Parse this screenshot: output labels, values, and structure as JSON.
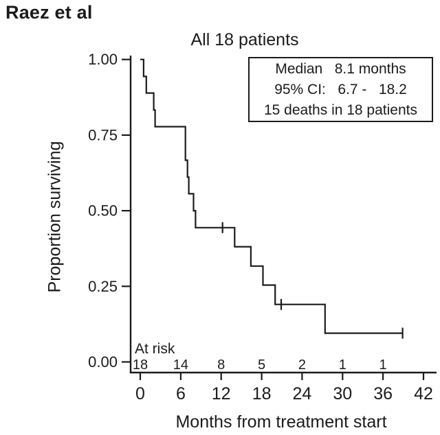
{
  "page": {
    "attribution": "Raez et al"
  },
  "stats_box": {
    "lines": [
      "Median   8.1 months",
      "95% CI:   6.7 -   18.2",
      "15 deaths in 18 patients"
    ]
  },
  "chart_data": {
    "type": "line",
    "chart_kind": "kaplan_meier_step_curve",
    "title": "All 18 patients",
    "xlabel": "Months from treatment start",
    "ylabel": "Proportion surviving",
    "xlim": [
      0,
      42
    ],
    "ylim": [
      0,
      1
    ],
    "grid": false,
    "x_ticks": [
      0,
      6,
      12,
      18,
      24,
      30,
      36,
      42
    ],
    "y_ticks": [
      {
        "value": 1.0,
        "label": "1.00"
      },
      {
        "value": 0.75,
        "label": "0.75"
      },
      {
        "value": 0.5,
        "label": "0.50"
      },
      {
        "value": 0.25,
        "label": "0.25"
      },
      {
        "value": 0.0,
        "label": "0.00"
      }
    ],
    "series": [
      {
        "name": "All 18 patients",
        "steps": [
          {
            "t0": 0.0,
            "t1": 0.5,
            "s": 1.0
          },
          {
            "t0": 0.5,
            "t1": 0.9,
            "s": 0.944
          },
          {
            "t0": 0.9,
            "t1": 2.0,
            "s": 0.889
          },
          {
            "t0": 2.0,
            "t1": 2.2,
            "s": 0.833
          },
          {
            "t0": 2.2,
            "t1": 6.7,
            "s": 0.778
          },
          {
            "t0": 6.7,
            "t1": 7.0,
            "s": 0.667
          },
          {
            "t0": 7.0,
            "t1": 7.2,
            "s": 0.611
          },
          {
            "t0": 7.2,
            "t1": 7.9,
            "s": 0.556
          },
          {
            "t0": 7.9,
            "t1": 8.2,
            "s": 0.5
          },
          {
            "t0": 8.2,
            "t1": 14.0,
            "s": 0.444
          },
          {
            "t0": 14.0,
            "t1": 16.4,
            "s": 0.381
          },
          {
            "t0": 16.4,
            "t1": 18.2,
            "s": 0.317
          },
          {
            "t0": 18.2,
            "t1": 20.0,
            "s": 0.254
          },
          {
            "t0": 20.0,
            "t1": 27.4,
            "s": 0.19
          },
          {
            "t0": 27.4,
            "t1": 38.9,
            "s": 0.095
          }
        ],
        "censor_marks": [
          {
            "t": 12.2,
            "s": 0.444
          },
          {
            "t": 20.9,
            "s": 0.19
          },
          {
            "t": 38.9,
            "s": 0.095
          }
        ]
      }
    ],
    "at_risk": {
      "label": "At risk",
      "times": [
        0,
        6,
        12,
        18,
        24,
        30,
        36
      ],
      "counts": [
        18,
        14,
        8,
        5,
        2,
        1,
        1
      ]
    },
    "annotations": {
      "median": "8.1 months",
      "ci_95": "6.7 - 18.2",
      "events": "15 deaths in 18 patients"
    }
  }
}
